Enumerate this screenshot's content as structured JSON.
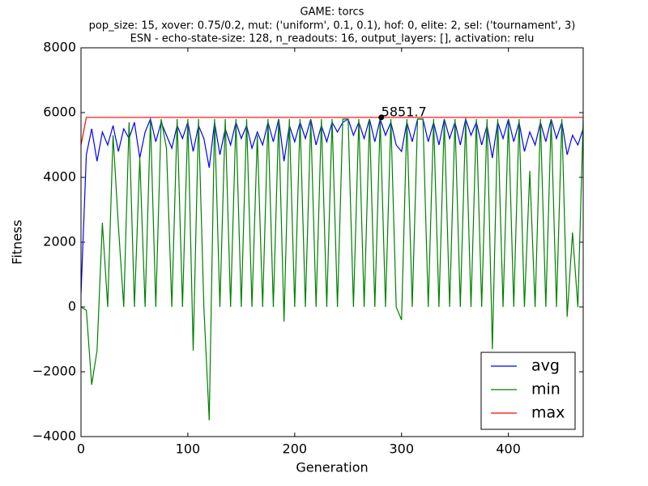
{
  "chart_data": {
    "type": "line",
    "title": "GAME: torcs",
    "subtitle": [
      "pop_size: 15, xover: 0.75/0.2, mut: ('uniform', 0.1, 0.1), hof: 0, elite: 2, sel: ('tournament', 3)",
      "ESN - echo-state-size: 128, n_readouts: 16, output_layers: [], activation: relu"
    ],
    "xlabel": "Generation",
    "ylabel": "Fitness",
    "xlim": [
      0,
      470
    ],
    "ylim": [
      -4000,
      8000
    ],
    "xticks": [
      0,
      100,
      200,
      300,
      400
    ],
    "yticks": [
      {
        "value": -4000,
        "label": "−4000"
      },
      {
        "value": -2000,
        "label": "−2000"
      },
      0,
      2000,
      4000,
      6000,
      8000
    ],
    "legend": "lower right",
    "x": [
      0,
      5,
      10,
      15,
      20,
      25,
      30,
      35,
      40,
      45,
      50,
      55,
      60,
      65,
      70,
      75,
      80,
      85,
      90,
      95,
      100,
      105,
      110,
      115,
      120,
      125,
      130,
      135,
      140,
      145,
      150,
      155,
      160,
      165,
      170,
      175,
      180,
      185,
      190,
      195,
      200,
      205,
      210,
      215,
      220,
      225,
      230,
      235,
      240,
      245,
      250,
      255,
      260,
      265,
      270,
      275,
      280,
      285,
      290,
      295,
      300,
      305,
      310,
      315,
      320,
      325,
      330,
      335,
      340,
      345,
      350,
      355,
      360,
      365,
      370,
      375,
      380,
      385,
      390,
      395,
      400,
      405,
      410,
      415,
      420,
      425,
      430,
      435,
      440,
      445,
      450,
      455,
      460,
      465,
      470
    ],
    "series": [
      {
        "name": "avg",
        "color": "#0000ff",
        "values": [
          400,
          4700,
          5500,
          4500,
          5400,
          5000,
          5600,
          4800,
          5500,
          5200,
          5700,
          4600,
          5400,
          5800,
          5100,
          5700,
          5300,
          4900,
          5600,
          5200,
          5700,
          4800,
          5600,
          5200,
          4300,
          5700,
          4700,
          5500,
          5000,
          5700,
          5200,
          5600,
          4900,
          5400,
          5000,
          5700,
          5100,
          5800,
          4500,
          5600,
          5100,
          5700,
          5200,
          5800,
          5000,
          5600,
          5100,
          5700,
          5400,
          5700,
          5800,
          5300,
          5700,
          5200,
          5800,
          5100,
          5800,
          5300,
          5700,
          5000,
          4800,
          5700,
          5100,
          5800,
          5800,
          5100,
          5700,
          5000,
          5800,
          5200,
          5700,
          5000,
          5800,
          5300,
          5700,
          5000,
          5600,
          4600,
          5700,
          5200,
          5800,
          5100,
          5700,
          4800,
          5400,
          5000,
          5700,
          5100,
          5800,
          5200,
          5700,
          4700,
          5300,
          5000,
          5500
        ]
      },
      {
        "name": "min",
        "color": "#008000",
        "values": [
          0,
          -100,
          -2400,
          -1350,
          2600,
          0,
          5300,
          2500,
          0,
          5700,
          0,
          4600,
          0,
          5800,
          0,
          5800,
          4900,
          0,
          5800,
          0,
          5800,
          -1350,
          5800,
          0,
          -3500,
          5800,
          0,
          5800,
          0,
          5800,
          0,
          5800,
          0,
          5300,
          0,
          5800,
          0,
          5800,
          -450,
          5800,
          0,
          5800,
          0,
          5800,
          0,
          5800,
          0,
          5800,
          0,
          5800,
          5800,
          0,
          5800,
          0,
          5800,
          0,
          5800,
          0,
          5800,
          0,
          -400,
          5800,
          0,
          5800,
          5800,
          0,
          5800,
          0,
          5800,
          0,
          5800,
          0,
          5800,
          0,
          5800,
          0,
          5800,
          -1300,
          5800,
          0,
          5800,
          0,
          5800,
          0,
          4200,
          0,
          5800,
          0,
          5800,
          0,
          5800,
          -300,
          2300,
          0,
          5800
        ]
      },
      {
        "name": "max",
        "color": "#ff0000",
        "values": [
          5000,
          5851.7,
          5851.7,
          5851.7,
          5851.7,
          5851.7,
          5851.7,
          5851.7,
          5851.7,
          5851.7,
          5851.7,
          5851.7,
          5851.7,
          5851.7,
          5851.7,
          5851.7,
          5851.7,
          5851.7,
          5851.7,
          5851.7,
          5851.7,
          5851.7,
          5851.7,
          5851.7,
          5851.7,
          5851.7,
          5851.7,
          5851.7,
          5851.7,
          5851.7,
          5851.7,
          5851.7,
          5851.7,
          5851.7,
          5851.7,
          5851.7,
          5851.7,
          5851.7,
          5851.7,
          5851.7,
          5851.7,
          5851.7,
          5851.7,
          5851.7,
          5851.7,
          5851.7,
          5851.7,
          5851.7,
          5851.7,
          5851.7,
          5851.7,
          5851.7,
          5851.7,
          5851.7,
          5851.7,
          5851.7,
          5851.7,
          5851.7,
          5851.7,
          5851.7,
          5851.7,
          5851.7,
          5851.7,
          5851.7,
          5851.7,
          5851.7,
          5851.7,
          5851.7,
          5851.7,
          5851.7,
          5851.7,
          5851.7,
          5851.7,
          5851.7,
          5851.7,
          5851.7,
          5851.7,
          5851.7,
          5851.7,
          5851.7,
          5851.7,
          5851.7,
          5851.7,
          5851.7,
          5851.7,
          5851.7,
          5851.7,
          5851.7,
          5851.7,
          5851.7,
          5851.7,
          5851.7,
          5851.7,
          5851.7,
          5851.7
        ]
      }
    ],
    "annotation": {
      "label": "5851.7",
      "x": 281,
      "y": 5851.7
    }
  }
}
